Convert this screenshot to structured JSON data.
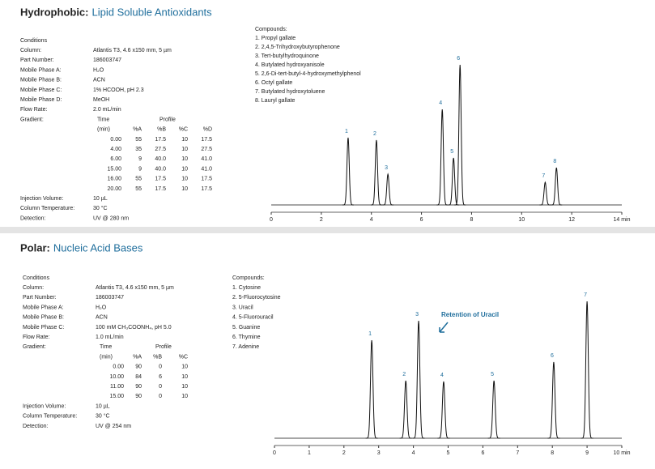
{
  "panels": [
    {
      "heading_prefix": "Hydrophobic:",
      "heading": "Lipid Soluble Antioxidants",
      "conditions_title": "Conditions",
      "conditions": [
        [
          "Column:",
          "Atlantis T3, 4.6 x150 mm, 5 µm"
        ],
        [
          "Part Number:",
          "186003747"
        ],
        [
          "Mobile Phase A:",
          "H₂O"
        ],
        [
          "Mobile Phase B:",
          "ACN"
        ],
        [
          "Mobile Phase C:",
          "1% HCOOH, pH 2.3"
        ],
        [
          "Mobile Phase D:",
          "MeOH"
        ],
        [
          "Flow Rate:",
          "2.0 mL/min"
        ]
      ],
      "gradient": {
        "label": "Gradient:",
        "time": "Time",
        "profile": "Profile",
        "header": [
          "(min)",
          "%A",
          "%B",
          "%C",
          "%D"
        ],
        "rows": [
          [
            "0.00",
            "55",
            "17.5",
            "10",
            "17.5"
          ],
          [
            "4.00",
            "35",
            "27.5",
            "10",
            "27.5"
          ],
          [
            "6.00",
            "9",
            "40.0",
            "10",
            "41.0"
          ],
          [
            "15.00",
            "9",
            "40.0",
            "10",
            "41.0"
          ],
          [
            "16.00",
            "55",
            "17.5",
            "10",
            "17.5"
          ],
          [
            "20.00",
            "55",
            "17.5",
            "10",
            "17.5"
          ]
        ]
      },
      "conditions_after": [
        [
          "Injection Volume:",
          "10 µL"
        ],
        [
          "Column Temperature:",
          "30 °C"
        ],
        [
          "Detection:",
          "UV @ 280 nm"
        ]
      ],
      "compounds_title": "Compounds:",
      "compounds": [
        "1. Propyl gallate",
        "2. 2,4,5-Trihydroxybutyrophenone",
        "3. Tert-butylhydroquinone",
        "4. Butylated hydroxyanisole",
        "5. 2,6-Di-tert-butyl-4-hydroxymethylphenol",
        "6. Octyl gallate",
        "7. Butylated hydroxytoluene",
        "8. Lauryl gallate"
      ]
    },
    {
      "heading_prefix": "Polar:",
      "heading": "Nucleic Acid Bases",
      "conditions_title": "Conditions",
      "conditions": [
        [
          "Column:",
          "Atlantis T3, 4.6 x150 mm, 5 µm"
        ],
        [
          "Part Number:",
          "186003747"
        ],
        [
          "Mobile Phase A:",
          "H₂O"
        ],
        [
          "Mobile Phase B:",
          "ACN"
        ],
        [
          "Mobile Phase C:",
          "100 mM CH₃COONH₄, pH 5.0"
        ],
        [
          "Flow Rate:",
          "1.0 mL/min"
        ]
      ],
      "gradient": {
        "label": "Gradient:",
        "time": "Time",
        "profile": "Profile",
        "header": [
          "(min)",
          "%A",
          "%B",
          "%C"
        ],
        "rows": [
          [
            "0.00",
            "90",
            "0",
            "10"
          ],
          [
            "10.00",
            "84",
            "6",
            "10"
          ],
          [
            "11.00",
            "90",
            "0",
            "10"
          ],
          [
            "15.00",
            "90",
            "0",
            "10"
          ]
        ]
      },
      "conditions_after": [
        [
          "Injection Volume:",
          "10 µL"
        ],
        [
          "Column Temperature:",
          "30 °C"
        ],
        [
          "Detection:",
          "UV @ 254 nm"
        ]
      ],
      "compounds_title": "Compounds:",
      "compounds": [
        "1. Cytosine",
        "2. 5-Fluorocytosine",
        "3. Uracil",
        "4. 5-Fluorouracil",
        "5. Guanine",
        "6. Thymine",
        "7. Adenine"
      ]
    }
  ],
  "chart_data": [
    {
      "type": "chromatogram",
      "x": [
        3.07,
        4.2,
        4.66,
        6.83,
        7.28,
        7.54,
        10.94,
        11.39
      ],
      "values": [
        83,
        80,
        38,
        118,
        58,
        173,
        28,
        46
      ],
      "peak_labels": [
        "1",
        "2",
        "3",
        "4",
        "5",
        "6",
        "7",
        "8"
      ],
      "color": "#111111",
      "xlim": [
        0,
        14
      ],
      "xticks": [
        0,
        2,
        4,
        6,
        8,
        10,
        12,
        {
          "value": 14,
          "label": "14 min"
        }
      ]
    },
    {
      "type": "chromatogram",
      "x": [
        2.8,
        3.78,
        4.15,
        4.87,
        6.32,
        8.04,
        9.0
      ],
      "values": [
        121,
        71,
        145,
        70,
        71,
        94,
        169
      ],
      "peak_labels": [
        "1",
        "2",
        "3",
        "4",
        "5",
        "6",
        "7"
      ],
      "color": "#111111",
      "xlim": [
        0,
        10
      ],
      "xticks": [
        0,
        1,
        2,
        3,
        4,
        5,
        6,
        7,
        8,
        9,
        {
          "value": 10,
          "label": "10 min"
        }
      ],
      "annotation": "Retention of Uracil"
    }
  ]
}
